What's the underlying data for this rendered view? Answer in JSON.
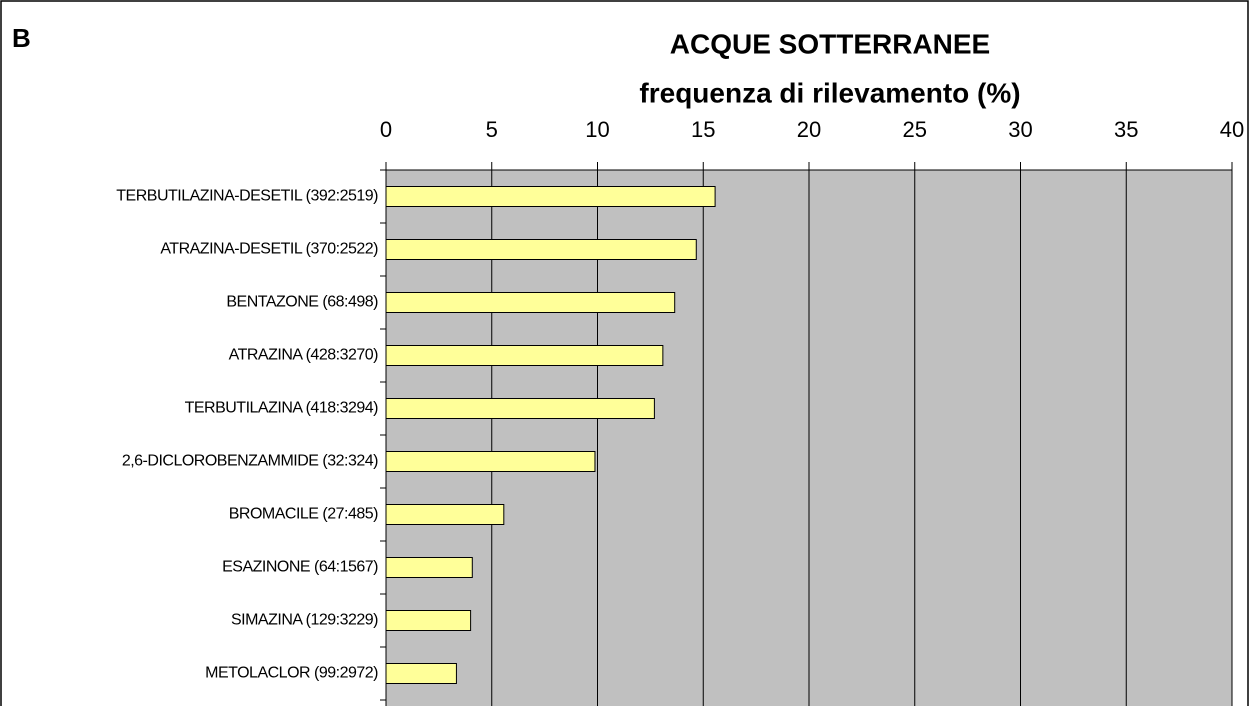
{
  "chart_data": {
    "type": "barh",
    "panel_label": "B",
    "title": "ACQUE SOTTERRANEE",
    "subtitle": "frequenza di rilevamento (%)",
    "categories": [
      "TERBUTILAZINA-DESETIL (392:2519)",
      "ATRAZINA-DESETIL (370:2522)",
      "BENTAZONE (68:498)",
      "ATRAZINA (428:3270)",
      "TERBUTILAZINA (418:3294)",
      "2,6-DICLOROBENZAMMIDE (32:324)",
      "BROMACILE (27:485)",
      "ESAZINONE (64:1567)",
      "SIMAZINA (129:3229)",
      "METOLACLOR (99:2972)"
    ],
    "values": [
      15.56,
      14.67,
      13.65,
      13.09,
      12.69,
      9.88,
      5.57,
      4.08,
      4.0,
      3.33
    ],
    "color": "#ffff99",
    "xlim": [
      0,
      40
    ],
    "xticks": [
      0,
      5,
      10,
      15,
      20,
      25,
      30,
      35,
      40
    ],
    "grid": true
  }
}
